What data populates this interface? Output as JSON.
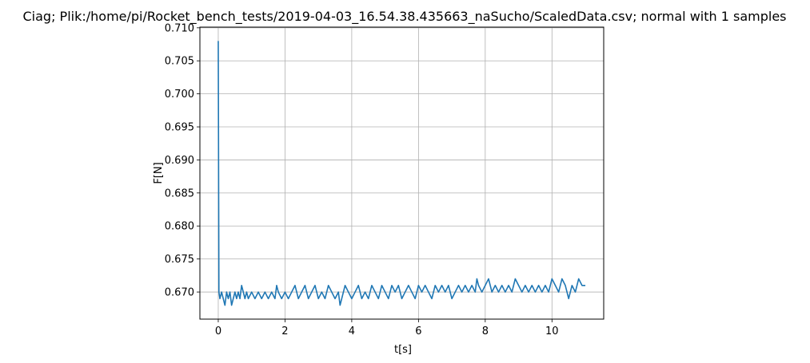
{
  "chart_data": {
    "type": "line",
    "title": "Ciag; Plik:/home/pi/Rocket_bench_tests/2019-04-03_16.54.38.435663_naSucho/ScaledData.csv; normal with 1 samples",
    "xlabel": "t[s]",
    "ylabel": "F[N]",
    "xlim": [
      -0.55,
      11.55
    ],
    "ylim": [
      0.6659,
      0.7101
    ],
    "grid": true,
    "legend": "none",
    "xticks": [
      0,
      2,
      4,
      6,
      8,
      10
    ],
    "xtick_labels": [
      "0",
      "2",
      "4",
      "6",
      "8",
      "10"
    ],
    "yticks": [
      0.67,
      0.675,
      0.68,
      0.685,
      0.69,
      0.695,
      0.7,
      0.705,
      0.71
    ],
    "ytick_labels": [
      "0.670",
      "0.675",
      "0.680",
      "0.685",
      "0.690",
      "0.695",
      "0.700",
      "0.705",
      "0.710"
    ],
    "series": [
      {
        "color": "#1f77b4",
        "x": [
          0.0,
          0.02,
          0.05,
          0.1,
          0.15,
          0.2,
          0.25,
          0.3,
          0.35,
          0.4,
          0.45,
          0.5,
          0.55,
          0.6,
          0.65,
          0.7,
          0.75,
          0.8,
          0.85,
          0.9,
          1.0,
          1.1,
          1.2,
          1.3,
          1.4,
          1.5,
          1.6,
          1.7,
          1.75,
          1.8,
          1.9,
          2.0,
          2.1,
          2.2,
          2.3,
          2.4,
          2.5,
          2.6,
          2.7,
          2.8,
          2.9,
          3.0,
          3.1,
          3.2,
          3.3,
          3.4,
          3.5,
          3.6,
          3.65,
          3.7,
          3.8,
          3.9,
          4.0,
          4.1,
          4.2,
          4.3,
          4.4,
          4.5,
          4.6,
          4.7,
          4.8,
          4.9,
          5.0,
          5.1,
          5.2,
          5.3,
          5.4,
          5.5,
          5.6,
          5.7,
          5.8,
          5.9,
          6.0,
          6.1,
          6.2,
          6.3,
          6.4,
          6.5,
          6.6,
          6.7,
          6.8,
          6.9,
          7.0,
          7.1,
          7.2,
          7.3,
          7.4,
          7.5,
          7.6,
          7.7,
          7.75,
          7.8,
          7.9,
          8.0,
          8.1,
          8.2,
          8.3,
          8.4,
          8.5,
          8.6,
          8.7,
          8.8,
          8.9,
          9.0,
          9.1,
          9.2,
          9.3,
          9.4,
          9.5,
          9.6,
          9.7,
          9.8,
          9.9,
          10.0,
          10.1,
          10.2,
          10.3,
          10.4,
          10.5,
          10.6,
          10.7,
          10.8,
          10.9,
          11.0
        ],
        "y": [
          0.708,
          0.67,
          0.669,
          0.67,
          0.669,
          0.668,
          0.67,
          0.669,
          0.67,
          0.668,
          0.669,
          0.67,
          0.669,
          0.67,
          0.669,
          0.671,
          0.67,
          0.669,
          0.67,
          0.669,
          0.67,
          0.669,
          0.67,
          0.669,
          0.67,
          0.669,
          0.67,
          0.669,
          0.671,
          0.67,
          0.669,
          0.67,
          0.669,
          0.67,
          0.671,
          0.669,
          0.67,
          0.671,
          0.669,
          0.67,
          0.671,
          0.669,
          0.67,
          0.669,
          0.671,
          0.67,
          0.669,
          0.67,
          0.668,
          0.669,
          0.671,
          0.67,
          0.669,
          0.67,
          0.671,
          0.669,
          0.67,
          0.669,
          0.671,
          0.67,
          0.669,
          0.671,
          0.67,
          0.669,
          0.671,
          0.67,
          0.671,
          0.669,
          0.67,
          0.671,
          0.67,
          0.669,
          0.671,
          0.67,
          0.671,
          0.67,
          0.669,
          0.671,
          0.67,
          0.671,
          0.67,
          0.671,
          0.669,
          0.67,
          0.671,
          0.67,
          0.671,
          0.67,
          0.671,
          0.67,
          0.672,
          0.671,
          0.67,
          0.671,
          0.672,
          0.67,
          0.671,
          0.67,
          0.671,
          0.67,
          0.671,
          0.67,
          0.672,
          0.671,
          0.67,
          0.671,
          0.67,
          0.671,
          0.67,
          0.671,
          0.67,
          0.671,
          0.67,
          0.672,
          0.671,
          0.67,
          0.672,
          0.671,
          0.669,
          0.671,
          0.67,
          0.672,
          0.671,
          0.671
        ]
      }
    ]
  }
}
